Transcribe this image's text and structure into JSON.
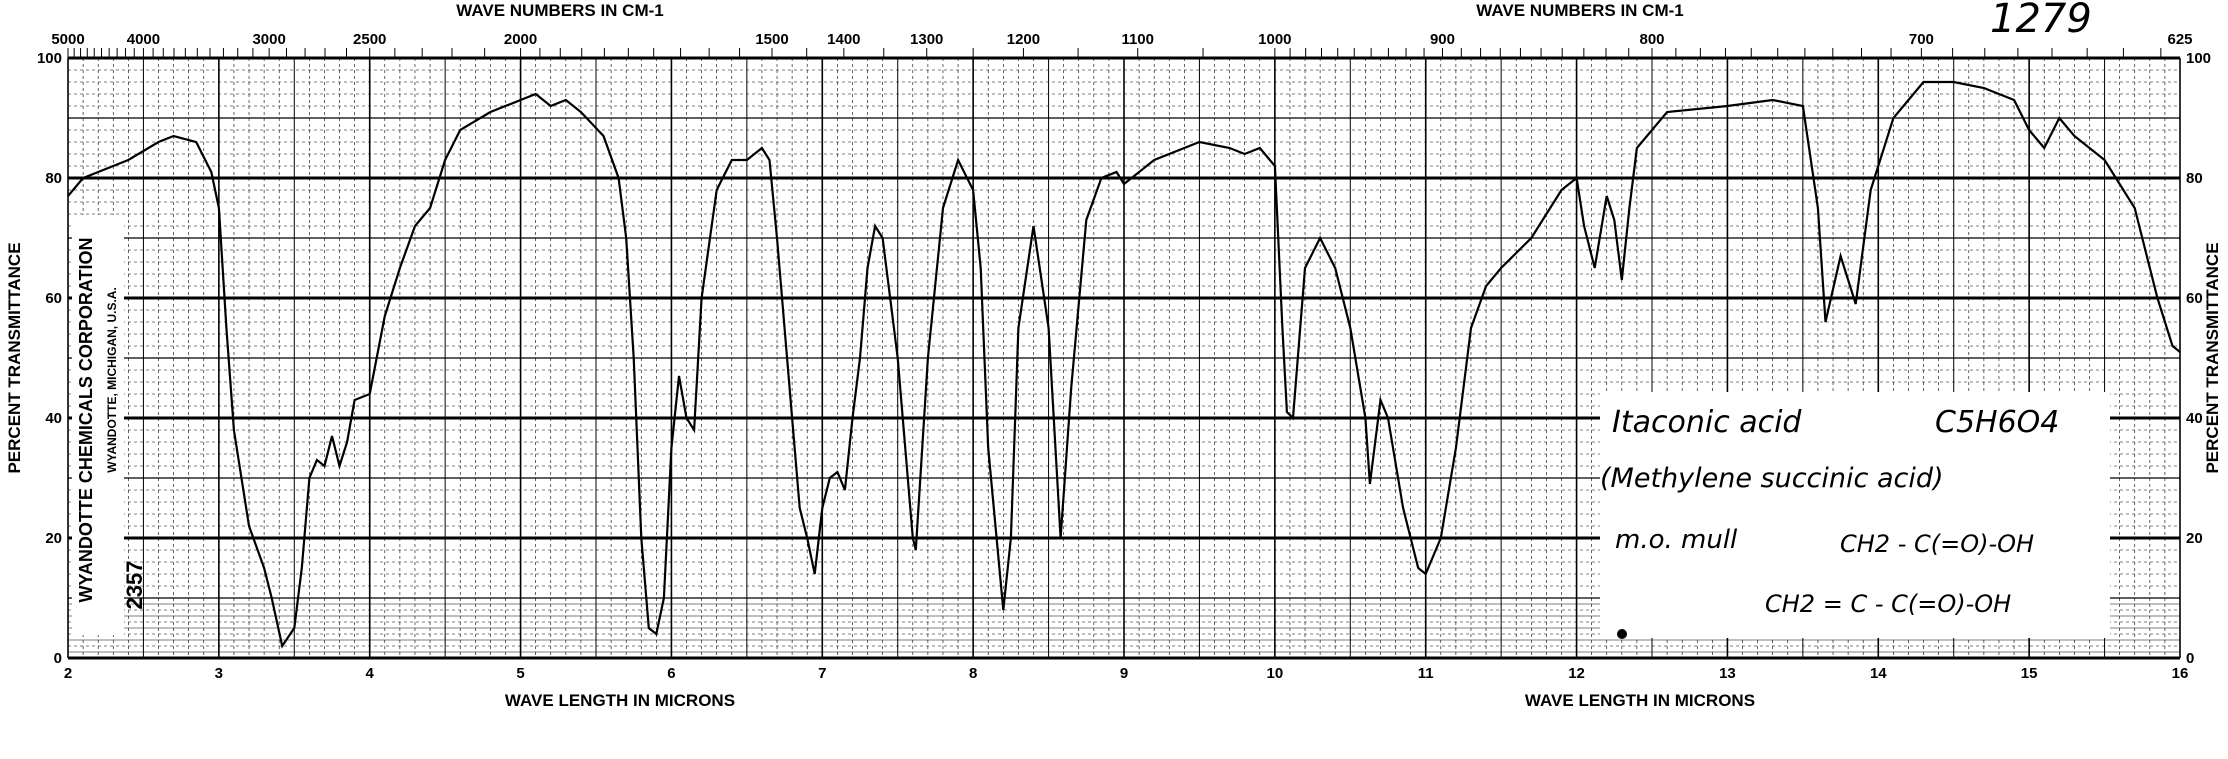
{
  "chart_data": {
    "type": "line",
    "top_axis_title": "WAVE NUMBERS IN CM-1",
    "bottom_axis_title": "WAVE LENGTH IN MICRONS",
    "ylabel": "PERCENT TRANSMITTANCE",
    "xlim": [
      2,
      16
    ],
    "ylim": [
      0,
      100
    ],
    "grid": true,
    "x_ticks": [
      "2",
      "3",
      "4",
      "5",
      "6",
      "7",
      "8",
      "9",
      "10",
      "11",
      "12",
      "13",
      "14",
      "15",
      "16"
    ],
    "y_ticks": [
      "0",
      "20",
      "40",
      "60",
      "80",
      "100"
    ],
    "wavenumber_ticks": [
      "5000",
      "4000",
      "3000",
      "2500",
      "2000",
      "1500",
      "1400",
      "1300",
      "1200",
      "1100",
      "1000",
      "900",
      "800",
      "700",
      "625"
    ],
    "series": [
      {
        "x": [
          2.0,
          2.1,
          2.2,
          2.4,
          2.6,
          2.7,
          2.85,
          2.95,
          3.0,
          3.05,
          3.1,
          3.2,
          3.3,
          3.35,
          3.42,
          3.5,
          3.55,
          3.6,
          3.65,
          3.7,
          3.75,
          3.8,
          3.85,
          3.9,
          4.0,
          4.1,
          4.2,
          4.3,
          4.4,
          4.5,
          4.6,
          4.8,
          5.0,
          5.1,
          5.2,
          5.3,
          5.4,
          5.55,
          5.65,
          5.7,
          5.75,
          5.8,
          5.85,
          5.9,
          5.95,
          6.0,
          6.05,
          6.1,
          6.15,
          6.2,
          6.3,
          6.4,
          6.5,
          6.6,
          6.65,
          6.7,
          6.8,
          6.85,
          6.9,
          6.95,
          7.0,
          7.05,
          7.1,
          7.15,
          7.2,
          7.25,
          7.3,
          7.35,
          7.4,
          7.5,
          7.6,
          7.62,
          7.7,
          7.8,
          7.9,
          8.0,
          8.05,
          8.1,
          8.2,
          8.25,
          8.3,
          8.4,
          8.5,
          8.58,
          8.65,
          8.75,
          8.85,
          8.95,
          9.0,
          9.2,
          9.5,
          9.7,
          9.8,
          9.9,
          10.0,
          10.05,
          10.08,
          10.12,
          10.2,
          10.3,
          10.4,
          10.5,
          10.6,
          10.63,
          10.7,
          10.75,
          10.85,
          10.95,
          11.0,
          11.1,
          11.2,
          11.3,
          11.4,
          11.5,
          11.7,
          11.9,
          12.0,
          12.05,
          12.12,
          12.2,
          12.25,
          12.3,
          12.35,
          12.4,
          12.6,
          13.0,
          13.3,
          13.5,
          13.6,
          13.65,
          13.75,
          13.85,
          13.95,
          14.1,
          14.3,
          14.5,
          14.7,
          14.9,
          15.0,
          15.1,
          15.2,
          15.3,
          15.5,
          15.7,
          15.85,
          15.95,
          16.0
        ],
        "y": [
          77,
          80,
          81,
          83,
          86,
          87,
          86,
          81,
          75,
          55,
          38,
          22,
          15,
          10,
          2,
          5,
          15,
          30,
          33,
          32,
          37,
          32,
          36,
          43,
          44,
          57,
          65,
          72,
          75,
          83,
          88,
          91,
          93,
          94,
          92,
          93,
          91,
          87,
          80,
          70,
          50,
          20,
          5,
          4,
          10,
          35,
          47,
          40,
          38,
          60,
          78,
          83,
          83,
          85,
          83,
          70,
          40,
          25,
          20,
          14,
          25,
          30,
          31,
          28,
          40,
          50,
          65,
          72,
          70,
          50,
          20,
          18,
          50,
          75,
          83,
          78,
          65,
          35,
          8,
          20,
          55,
          72,
          55,
          20,
          45,
          73,
          80,
          81,
          79,
          83,
          86,
          85,
          84,
          85,
          82,
          55,
          41,
          40,
          65,
          70,
          65,
          55,
          40,
          29,
          43,
          40,
          25,
          15,
          14,
          20,
          35,
          55,
          62,
          65,
          70,
          78,
          80,
          72,
          65,
          77,
          73,
          63,
          75,
          85,
          91,
          92,
          93,
          92,
          75,
          56,
          67,
          59,
          78,
          90,
          96,
          96,
          95,
          93,
          88,
          85,
          90,
          87,
          83,
          75,
          60,
          52,
          51
        ]
      }
    ]
  },
  "header": {
    "spectrum_number": "1279"
  },
  "side_label": {
    "company": "WYANDOTTE CHEMICALS CORPORATION",
    "location": "WYANDOTTE, MICHIGAN, U.S.A.",
    "code": "2357"
  },
  "annotation": {
    "name": "Itaconic acid",
    "formula": "C5H6O4",
    "synonym": "(Methylene succinic acid)",
    "sample": "m.o. mull",
    "structure_line1": "CH2 - C(=O)-OH",
    "structure_line2": "CH2 = C - C(=O)-OH"
  },
  "colors": {
    "ink": "#000000",
    "paper": "#ffffff"
  }
}
